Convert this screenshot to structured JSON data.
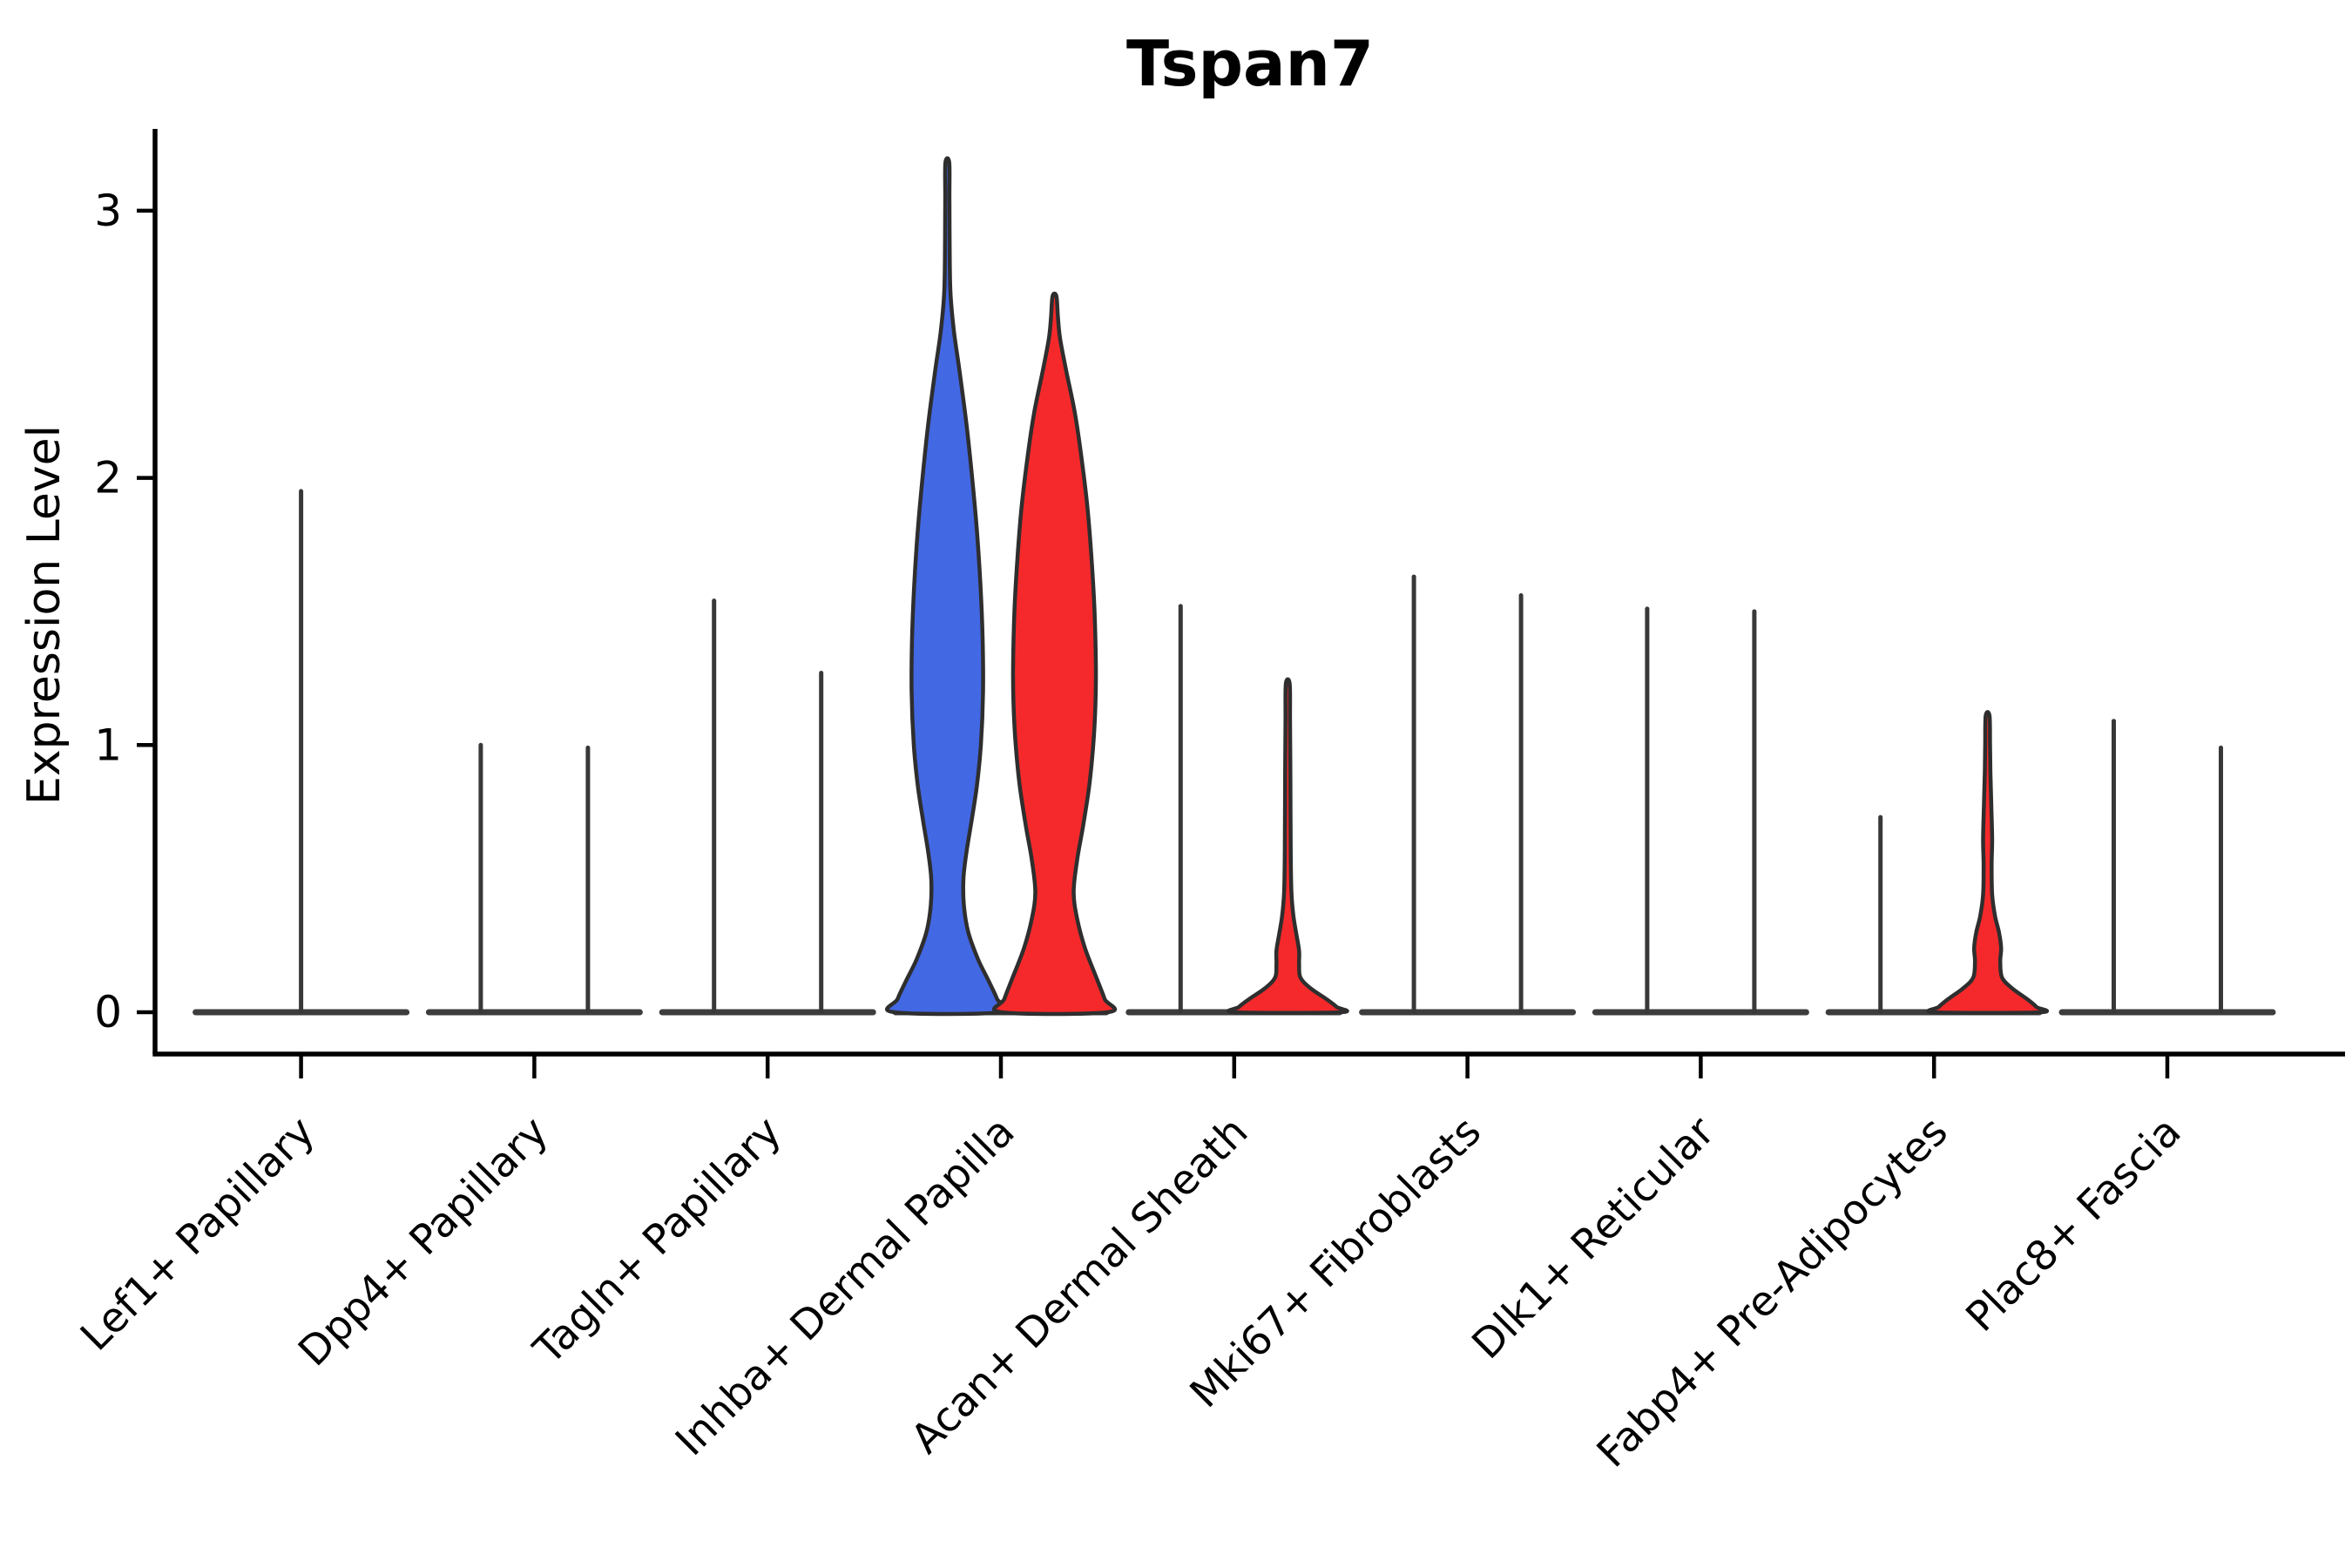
{
  "title": "Tspan7",
  "y_axis": {
    "label": "Expression Level",
    "tick_labels": [
      "0",
      "1",
      "2",
      "3"
    ]
  },
  "colors": {
    "blue_fill": "#4368E4",
    "red_fill": "#F5292B",
    "violin_outline": "#2E2E2E",
    "spike_stroke": "#383838",
    "baseline_stroke": "#3D3D3D",
    "axis_stroke": "#000000"
  },
  "chart_data": {
    "type": "violin",
    "title": "Tspan7",
    "ylabel": "Expression Level",
    "xlabel": "",
    "ylim": [
      0,
      3.3
    ],
    "yticks": [
      0,
      1,
      2,
      3
    ],
    "grid": false,
    "legend": "none",
    "group_colors": {
      "blue": "#4368E4",
      "red": "#F5292B"
    },
    "categories": [
      {
        "label": "Lef1+ Papillary",
        "violins": [
          {
            "side": "center",
            "style": "spike",
            "color": null,
            "max": 1.95
          }
        ]
      },
      {
        "label": "Dpp4+ Papillary",
        "violins": [
          {
            "side": "left",
            "style": "spike",
            "color": null,
            "max": 1.0
          },
          {
            "side": "right",
            "style": "spike",
            "color": null,
            "max": 0.99
          }
        ]
      },
      {
        "label": "Tagln+ Papillary",
        "violins": [
          {
            "side": "left",
            "style": "spike",
            "color": null,
            "max": 1.54
          },
          {
            "side": "right",
            "style": "spike",
            "color": null,
            "max": 1.27
          }
        ]
      },
      {
        "label": "Inhba+ Dermal Papilla",
        "violins": [
          {
            "side": "left",
            "style": "violin",
            "color": "blue",
            "max": 3.18,
            "profile": [
              [
                0,
                61
              ],
              [
                0.05,
                57
              ],
              [
                0.12,
                47
              ],
              [
                0.2,
                35
              ],
              [
                0.3,
                24
              ],
              [
                0.4,
                19
              ],
              [
                0.5,
                18.5
              ],
              [
                0.6,
                22
              ],
              [
                0.72,
                28
              ],
              [
                0.85,
                34
              ],
              [
                1.0,
                38.5
              ],
              [
                1.2,
                41
              ],
              [
                1.4,
                40.5
              ],
              [
                1.6,
                38
              ],
              [
                1.8,
                34
              ],
              [
                2.0,
                28.5
              ],
              [
                2.2,
                22
              ],
              [
                2.4,
                14
              ],
              [
                2.55,
                7.5
              ],
              [
                2.7,
                3.5
              ],
              [
                2.9,
                2.6
              ],
              [
                3.05,
                2.4
              ],
              [
                3.18,
                2.2
              ]
            ]
          },
          {
            "side": "right",
            "style": "violin",
            "color": "red",
            "max": 2.68,
            "profile": [
              [
                0,
                61
              ],
              [
                0.05,
                57.5
              ],
              [
                0.13,
                48
              ],
              [
                0.24,
                35
              ],
              [
                0.35,
                26
              ],
              [
                0.45,
                22
              ],
              [
                0.57,
                26
              ],
              [
                0.7,
                33
              ],
              [
                0.85,
                40
              ],
              [
                1.0,
                44.5
              ],
              [
                1.15,
                47
              ],
              [
                1.3,
                47.5
              ],
              [
                1.5,
                46
              ],
              [
                1.7,
                42.5
              ],
              [
                1.9,
                37.5
              ],
              [
                2.1,
                30
              ],
              [
                2.25,
                23
              ],
              [
                2.4,
                13.5
              ],
              [
                2.52,
                6.5
              ],
              [
                2.6,
                4
              ],
              [
                2.68,
                2.2
              ]
            ]
          }
        ]
      },
      {
        "label": "Acan+ Dermal Sheath",
        "violins": [
          {
            "side": "left",
            "style": "spike",
            "color": null,
            "max": 1.52
          },
          {
            "side": "right",
            "style": "violin",
            "color": "red",
            "max": 1.23,
            "profile": [
              [
                0,
                60
              ],
              [
                0.02,
                56
              ],
              [
                0.05,
                44
              ],
              [
                0.09,
                26
              ],
              [
                0.13,
                14.5
              ],
              [
                0.18,
                13
              ],
              [
                0.23,
                13
              ],
              [
                0.29,
                10
              ],
              [
                0.36,
                6.5
              ],
              [
                0.45,
                4.2
              ],
              [
                0.6,
                3.4
              ],
              [
                0.9,
                3
              ],
              [
                1.1,
                2.6
              ],
              [
                1.23,
                2.2
              ]
            ]
          }
        ]
      },
      {
        "label": "Mki67+ Fibroblasts",
        "violins": [
          {
            "side": "left",
            "style": "spike",
            "color": null,
            "max": 1.63
          },
          {
            "side": "right",
            "style": "spike",
            "color": null,
            "max": 1.56
          }
        ]
      },
      {
        "label": "Dlk1+ Reticular",
        "violins": [
          {
            "side": "left",
            "style": "spike",
            "color": null,
            "max": 1.51
          },
          {
            "side": "right",
            "style": "spike",
            "color": null,
            "max": 1.5
          }
        ]
      },
      {
        "label": "Fabp4+ Pre-Adipocytes",
        "violins": [
          {
            "side": "left",
            "style": "spike",
            "color": null,
            "max": 0.73
          },
          {
            "side": "right",
            "style": "violin",
            "color": "red",
            "max": 1.11,
            "profile": [
              [
                0,
                60
              ],
              [
                0.02,
                56
              ],
              [
                0.05,
                45
              ],
              [
                0.09,
                28
              ],
              [
                0.13,
                16.5
              ],
              [
                0.19,
                14.5
              ],
              [
                0.24,
                15.5
              ],
              [
                0.3,
                13
              ],
              [
                0.36,
                8.5
              ],
              [
                0.44,
                5.2
              ],
              [
                0.55,
                4.6
              ],
              [
                0.65,
                5.2
              ],
              [
                0.78,
                4.2
              ],
              [
                0.9,
                3.2
              ],
              [
                1.0,
                2.8
              ],
              [
                1.11,
                2.2
              ]
            ]
          }
        ]
      },
      {
        "label": "Plac8+ Fascia",
        "violins": [
          {
            "side": "left",
            "style": "spike",
            "color": null,
            "max": 1.09
          },
          {
            "side": "right",
            "style": "spike",
            "color": null,
            "max": 0.99
          }
        ]
      }
    ]
  }
}
